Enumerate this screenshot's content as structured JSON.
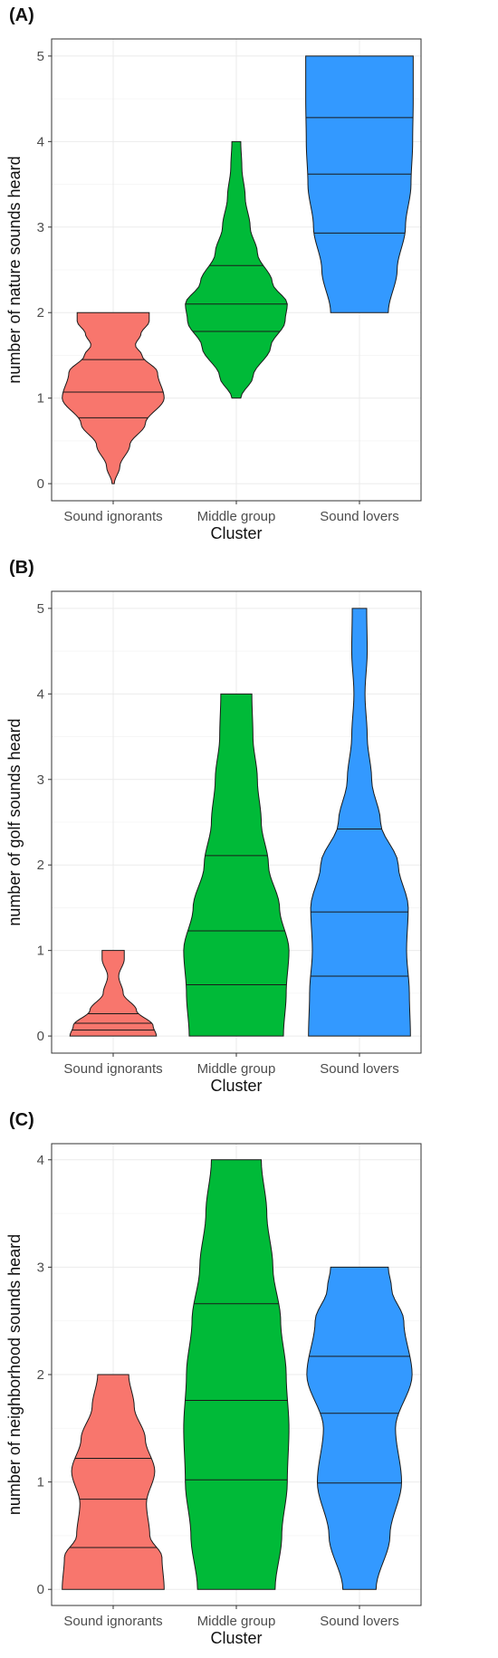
{
  "chart_data": [
    {
      "type": "violin",
      "panel_label": "(A)",
      "xlabel": "Cluster",
      "ylabel": "number of nature sounds heard",
      "categories": [
        "Sound ignorants",
        "Middle group",
        "Sound lovers"
      ],
      "colors": [
        "#F8766D",
        "#00BA38",
        "#3399FF"
      ],
      "ylim": [
        -0.2,
        5.2
      ],
      "yticks": [
        0,
        1,
        2,
        3,
        4,
        5
      ],
      "grid": true,
      "violins": [
        {
          "min": 0,
          "max": 2,
          "quantiles": [
            0.77,
            1.07,
            1.45
          ],
          "shape": [
            [
              0,
              0.02
            ],
            [
              0.2,
              0.12
            ],
            [
              0.45,
              0.3
            ],
            [
              0.7,
              0.58
            ],
            [
              1.0,
              0.92
            ],
            [
              1.3,
              0.8
            ],
            [
              1.5,
              0.52
            ],
            [
              1.62,
              0.4
            ],
            [
              1.75,
              0.5
            ],
            [
              1.9,
              0.65
            ],
            [
              2.0,
              0.65
            ]
          ]
        },
        {
          "min": 1,
          "max": 4,
          "quantiles": [
            1.78,
            2.1,
            2.55
          ],
          "shape": [
            [
              1,
              0.08
            ],
            [
              1.25,
              0.3
            ],
            [
              1.6,
              0.62
            ],
            [
              1.9,
              0.88
            ],
            [
              2.1,
              0.92
            ],
            [
              2.35,
              0.65
            ],
            [
              2.7,
              0.38
            ],
            [
              3.0,
              0.25
            ],
            [
              3.35,
              0.16
            ],
            [
              3.7,
              0.1
            ],
            [
              4.0,
              0.08
            ]
          ]
        },
        {
          "min": 2,
          "max": 5,
          "quantiles": [
            2.93,
            3.62,
            4.28
          ],
          "shape": [
            [
              2,
              0.52
            ],
            [
              2.5,
              0.68
            ],
            [
              3.0,
              0.83
            ],
            [
              3.5,
              0.93
            ],
            [
              4.0,
              0.96
            ],
            [
              4.5,
              0.97
            ],
            [
              5.0,
              0.97
            ]
          ]
        }
      ]
    },
    {
      "type": "violin",
      "panel_label": "(B)",
      "xlabel": "Cluster",
      "ylabel": "number of golf sounds heard",
      "categories": [
        "Sound ignorants",
        "Middle group",
        "Sound lovers"
      ],
      "colors": [
        "#F8766D",
        "#00BA38",
        "#3399FF"
      ],
      "ylim": [
        -0.2,
        5.2
      ],
      "yticks": [
        0,
        1,
        2,
        3,
        4,
        5
      ],
      "grid": true,
      "violins": [
        {
          "min": 0,
          "max": 1,
          "quantiles": [
            0.07,
            0.15,
            0.26
          ],
          "shape": [
            [
              0,
              0.78
            ],
            [
              0.12,
              0.72
            ],
            [
              0.3,
              0.42
            ],
            [
              0.5,
              0.18
            ],
            [
              0.7,
              0.1
            ],
            [
              0.9,
              0.2
            ],
            [
              1.0,
              0.2
            ]
          ]
        },
        {
          "min": 0,
          "max": 4,
          "quantiles": [
            0.6,
            1.23,
            2.11
          ],
          "shape": [
            [
              0,
              0.85
            ],
            [
              0.5,
              0.9
            ],
            [
              1.0,
              0.95
            ],
            [
              1.5,
              0.78
            ],
            [
              2.0,
              0.58
            ],
            [
              2.5,
              0.45
            ],
            [
              3.0,
              0.38
            ],
            [
              3.5,
              0.3
            ],
            [
              4.0,
              0.28
            ]
          ]
        },
        {
          "min": 0,
          "max": 5,
          "quantiles": [
            0.7,
            1.45,
            2.42
          ],
          "shape": [
            [
              0,
              0.92
            ],
            [
              0.5,
              0.9
            ],
            [
              1.0,
              0.85
            ],
            [
              1.5,
              0.88
            ],
            [
              2.0,
              0.7
            ],
            [
              2.5,
              0.38
            ],
            [
              3.0,
              0.22
            ],
            [
              3.5,
              0.14
            ],
            [
              4.0,
              0.1
            ],
            [
              4.5,
              0.14
            ],
            [
              5.0,
              0.13
            ]
          ]
        }
      ]
    },
    {
      "type": "violin",
      "panel_label": "(C)",
      "xlabel": "Cluster",
      "ylabel": "number of neighborhood sounds heard",
      "categories": [
        "Sound ignorants",
        "Middle group",
        "Sound lovers"
      ],
      "colors": [
        "#F8766D",
        "#00BA38",
        "#3399FF"
      ],
      "ylim": [
        -0.15,
        4.15
      ],
      "yticks": [
        0,
        1,
        2,
        3,
        4
      ],
      "grid": true,
      "violins": [
        {
          "min": 0,
          "max": 2,
          "quantiles": [
            0.39,
            0.84,
            1.22
          ],
          "shape": [
            [
              0,
              0.92
            ],
            [
              0.3,
              0.88
            ],
            [
              0.5,
              0.66
            ],
            [
              0.8,
              0.6
            ],
            [
              1.1,
              0.75
            ],
            [
              1.4,
              0.58
            ],
            [
              1.7,
              0.38
            ],
            [
              2.0,
              0.28
            ]
          ]
        },
        {
          "min": 0,
          "max": 4,
          "quantiles": [
            1.02,
            1.76,
            2.66
          ],
          "shape": [
            [
              0,
              0.7
            ],
            [
              0.5,
              0.82
            ],
            [
              1.0,
              0.92
            ],
            [
              1.5,
              0.95
            ],
            [
              2.0,
              0.9
            ],
            [
              2.5,
              0.8
            ],
            [
              3.0,
              0.66
            ],
            [
              3.5,
              0.55
            ],
            [
              4.0,
              0.45
            ]
          ]
        },
        {
          "min": 0,
          "max": 3,
          "quantiles": [
            0.99,
            1.64,
            2.17
          ],
          "shape": [
            [
              0,
              0.3
            ],
            [
              0.5,
              0.55
            ],
            [
              1.0,
              0.76
            ],
            [
              1.5,
              0.65
            ],
            [
              2.0,
              0.95
            ],
            [
              2.5,
              0.8
            ],
            [
              2.8,
              0.58
            ],
            [
              3.0,
              0.52
            ]
          ]
        }
      ]
    }
  ]
}
